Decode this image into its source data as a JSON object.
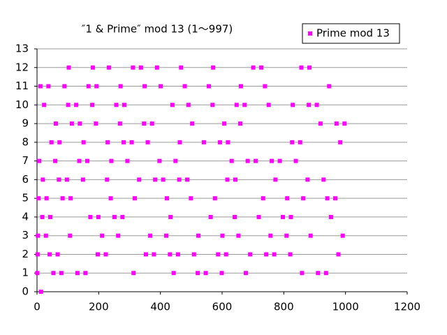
{
  "chart_data": {
    "type": "scatter",
    "title": "″1 & Prime″ mod 13 (1〜997)",
    "series": [
      {
        "name": "Prime mod 13",
        "color": "#ff00ff",
        "x": [
          1,
          2,
          3,
          5,
          7,
          11,
          13,
          17,
          19,
          23,
          29,
          31,
          37,
          41,
          43,
          47,
          53,
          59,
          61,
          67,
          71,
          73,
          79,
          83,
          89,
          97,
          101,
          103,
          107,
          109,
          113,
          127,
          131,
          137,
          139,
          149,
          151,
          157,
          163,
          167,
          173,
          179,
          181,
          191,
          193,
          197,
          199,
          211,
          223,
          227,
          229,
          233,
          239,
          241,
          251,
          257,
          263,
          269,
          271,
          277,
          281,
          283,
          293,
          307,
          311,
          313,
          317,
          331,
          337,
          347,
          349,
          353,
          359,
          367,
          373,
          379,
          383,
          389,
          397,
          401,
          409,
          419,
          421,
          431,
          433,
          439,
          443,
          449,
          457,
          461,
          463,
          467,
          479,
          487,
          491,
          499,
          503,
          509,
          521,
          523,
          541,
          547,
          557,
          563,
          569,
          571,
          577,
          587,
          593,
          599,
          601,
          607,
          613,
          617,
          619,
          631,
          641,
          643,
          647,
          653,
          659,
          661,
          673,
          677,
          683,
          691,
          701,
          709,
          719,
          727,
          733,
          739,
          743,
          751,
          757,
          761,
          769,
          773,
          787,
          797,
          809,
          811,
          821,
          823,
          827,
          829,
          839,
          853,
          857,
          859,
          863,
          877,
          881,
          883,
          887,
          907,
          911,
          919,
          929,
          937,
          941,
          947,
          953,
          967,
          971,
          977,
          983,
          991,
          997
        ],
        "values": [
          1,
          2,
          3,
          5,
          7,
          11,
          0,
          4,
          6,
          10,
          3,
          5,
          11,
          2,
          4,
          8,
          1,
          7,
          9,
          2,
          6,
          8,
          1,
          5,
          11,
          6,
          10,
          12,
          3,
          5,
          9,
          10,
          1,
          7,
          9,
          6,
          8,
          1,
          7,
          11,
          4,
          10,
          12,
          9,
          11,
          2,
          4,
          3,
          2,
          6,
          8,
          12,
          5,
          7,
          4,
          10,
          3,
          9,
          11,
          4,
          8,
          10,
          7,
          8,
          12,
          1,
          5,
          6,
          12,
          9,
          11,
          2,
          8,
          3,
          9,
          2,
          6,
          12,
          7,
          11,
          6,
          3,
          5,
          2,
          4,
          10,
          1,
          7,
          2,
          6,
          8,
          12,
          11,
          6,
          10,
          5,
          9,
          2,
          1,
          3,
          8,
          1,
          11,
          4,
          10,
          12,
          5,
          2,
          8,
          1,
          3,
          9,
          2,
          6,
          8,
          7,
          4,
          6,
          10,
          3,
          9,
          11,
          10,
          1,
          7,
          2,
          12,
          7,
          4,
          12,
          5,
          11,
          2,
          10,
          3,
          7,
          2,
          6,
          7,
          4,
          3,
          5,
          2,
          4,
          8,
          10,
          7,
          8,
          12,
          1,
          5,
          6,
          10,
          12,
          3,
          10,
          1,
          9,
          6,
          1,
          5,
          11,
          4,
          5,
          9,
          2,
          8,
          3,
          9
        ]
      }
    ],
    "xlim": [
      0,
      1200
    ],
    "xticks": [
      0,
      200,
      400,
      600,
      800,
      1000,
      1200
    ],
    "ylim": [
      0,
      13
    ],
    "yticks": [
      0,
      1,
      2,
      3,
      4,
      5,
      6,
      7,
      8,
      9,
      10,
      11,
      12,
      13
    ],
    "grid": true
  }
}
